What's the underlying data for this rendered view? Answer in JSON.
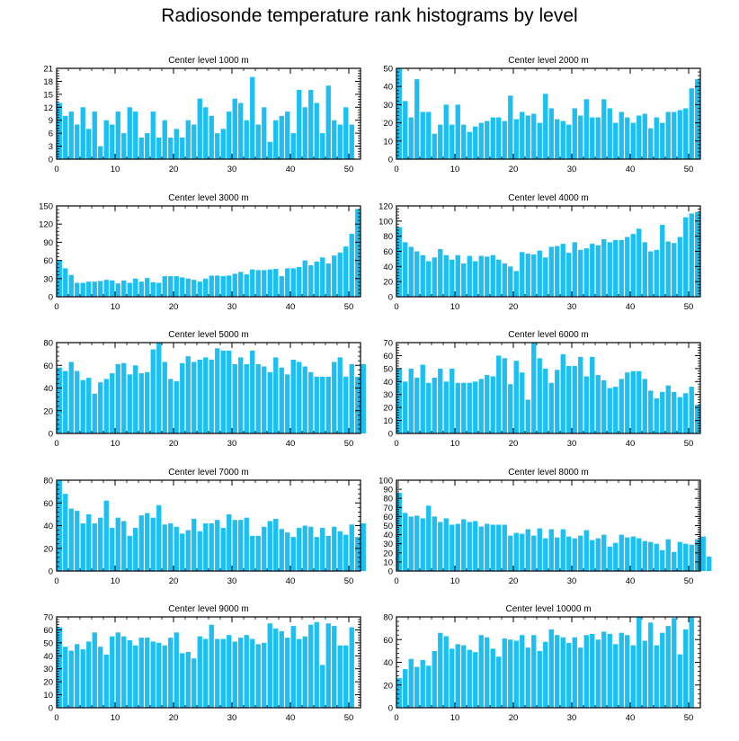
{
  "title": "Radiosonde temperature rank histograms by level",
  "chart_data": [
    {
      "type": "bar",
      "title": "Center level 1000 m",
      "ylim": [
        0,
        21
      ],
      "yticks": [
        0,
        3,
        6,
        9,
        12,
        15,
        18,
        21
      ],
      "xlim": [
        0,
        52
      ],
      "xticks": [
        0,
        10,
        20,
        30,
        40,
        50
      ],
      "values": [
        13,
        10,
        11,
        8,
        12,
        7,
        11,
        3,
        9,
        8,
        11,
        6,
        12,
        11,
        5,
        6,
        11,
        5,
        9,
        5,
        7,
        5,
        9,
        8,
        14,
        12,
        10,
        6,
        7,
        11,
        14,
        13,
        9,
        19,
        8,
        12,
        4,
        9,
        10,
        11,
        6,
        16,
        12,
        16,
        13,
        6,
        17,
        9,
        8,
        12,
        8
      ]
    },
    {
      "type": "bar",
      "title": "Center level 2000 m",
      "ylim": [
        0,
        50
      ],
      "yticks": [
        0,
        10,
        20,
        30,
        40,
        50
      ],
      "xlim": [
        0,
        52
      ],
      "xticks": [
        0,
        10,
        20,
        30,
        40,
        50
      ],
      "values": [
        50,
        32,
        23,
        44,
        26,
        26,
        14,
        19,
        30,
        19,
        30,
        19,
        15,
        18,
        20,
        21,
        23,
        23,
        21,
        35,
        22,
        26,
        24,
        25,
        20,
        36,
        28,
        22,
        21,
        19,
        28,
        24,
        33,
        23,
        23,
        33,
        28,
        20,
        26,
        23,
        20,
        24,
        25,
        17,
        23,
        20,
        26,
        26,
        27,
        28,
        39,
        44
      ]
    },
    {
      "type": "bar",
      "title": "Center level 3000 m",
      "ylim": [
        0,
        150
      ],
      "yticks": [
        0,
        30,
        60,
        90,
        120,
        150
      ],
      "xlim": [
        0,
        52
      ],
      "xticks": [
        0,
        10,
        20,
        30,
        40,
        50
      ],
      "values": [
        60,
        47,
        36,
        23,
        23,
        25,
        25,
        26,
        28,
        27,
        22,
        27,
        23,
        30,
        25,
        31,
        24,
        23,
        34,
        34,
        34,
        32,
        30,
        28,
        25,
        30,
        35,
        35,
        34,
        35,
        38,
        41,
        37,
        45,
        44,
        44,
        45,
        46,
        34,
        47,
        47,
        49,
        60,
        52,
        58,
        65,
        55,
        68,
        73,
        83,
        104,
        145
      ]
    },
    {
      "type": "bar",
      "title": "Center level 4000 m",
      "ylim": [
        0,
        120
      ],
      "yticks": [
        0,
        20,
        40,
        60,
        80,
        100,
        120
      ],
      "xlim": [
        0,
        52
      ],
      "xticks": [
        0,
        10,
        20,
        30,
        40,
        50
      ],
      "values": [
        92,
        72,
        66,
        60,
        55,
        47,
        52,
        63,
        55,
        49,
        55,
        44,
        54,
        47,
        54,
        53,
        55,
        49,
        44,
        40,
        34,
        59,
        57,
        56,
        61,
        52,
        66,
        67,
        70,
        58,
        72,
        62,
        64,
        70,
        68,
        76,
        72,
        75,
        75,
        79,
        83,
        90,
        72,
        60,
        62,
        95,
        73,
        71,
        79,
        105,
        110,
        112
      ]
    },
    {
      "type": "bar",
      "title": "Center level 5000 m",
      "ylim": [
        0,
        80
      ],
      "yticks": [
        0,
        20,
        40,
        60,
        80
      ],
      "xlim": [
        0,
        52
      ],
      "xticks": [
        0,
        10,
        20,
        30,
        40,
        50
      ],
      "values": [
        58,
        55,
        63,
        55,
        47,
        49,
        35,
        45,
        48,
        53,
        61,
        62,
        52,
        60,
        53,
        54,
        74,
        80,
        63,
        48,
        46,
        62,
        68,
        63,
        65,
        67,
        65,
        75,
        73,
        73,
        61,
        67,
        61,
        73,
        61,
        59,
        54,
        67,
        58,
        52,
        65,
        63,
        59,
        54,
        50,
        50,
        50,
        63,
        67,
        50,
        61,
        50,
        61
      ]
    },
    {
      "type": "bar",
      "title": "Center level 6000 m",
      "ylim": [
        0,
        70
      ],
      "yticks": [
        0,
        10,
        20,
        30,
        40,
        50,
        60,
        70
      ],
      "xlim": [
        0,
        52
      ],
      "xticks": [
        0,
        10,
        20,
        30,
        40,
        50
      ],
      "values": [
        50,
        40,
        50,
        43,
        53,
        39,
        43,
        50,
        40,
        50,
        39,
        39,
        39,
        40,
        42,
        45,
        44,
        60,
        58,
        38,
        56,
        47,
        26,
        70,
        58,
        50,
        39,
        49,
        61,
        52,
        52,
        59,
        44,
        59,
        45,
        41,
        35,
        36,
        42,
        47,
        48,
        48,
        42,
        33,
        27,
        32,
        37,
        32,
        28,
        31,
        36,
        22
      ]
    },
    {
      "type": "bar",
      "title": "Center level 7000 m",
      "ylim": [
        0,
        80
      ],
      "yticks": [
        0,
        20,
        40,
        60,
        80
      ],
      "xlim": [
        0,
        52
      ],
      "xticks": [
        0,
        10,
        20,
        30,
        40,
        50
      ],
      "values": [
        80,
        68,
        55,
        53,
        42,
        50,
        42,
        47,
        62,
        38,
        47,
        44,
        31,
        38,
        49,
        51,
        47,
        58,
        41,
        42,
        39,
        33,
        36,
        46,
        35,
        42,
        42,
        45,
        38,
        50,
        45,
        45,
        47,
        31,
        31,
        39,
        44,
        46,
        37,
        34,
        30,
        38,
        40,
        39,
        30,
        38,
        31,
        39,
        35,
        32,
        41,
        30,
        42
      ]
    },
    {
      "type": "bar",
      "title": "Center level 8000 m",
      "ylim": [
        0,
        100
      ],
      "yticks": [
        0,
        10,
        20,
        30,
        40,
        50,
        60,
        70,
        80,
        90,
        100
      ],
      "xlim": [
        0,
        52
      ],
      "xticks": [
        0,
        10,
        20,
        30,
        40,
        50
      ],
      "values": [
        86,
        64,
        60,
        61,
        58,
        72,
        60,
        54,
        58,
        51,
        52,
        57,
        54,
        55,
        49,
        52,
        51,
        51,
        51,
        39,
        42,
        41,
        46,
        39,
        47,
        36,
        46,
        37,
        46,
        38,
        36,
        39,
        45,
        34,
        36,
        40,
        27,
        31,
        40,
        37,
        38,
        36,
        33,
        32,
        30,
        23,
        35,
        21,
        32,
        30,
        29,
        35,
        38,
        16
      ]
    },
    {
      "type": "bar",
      "title": "Center level 9000 m",
      "ylim": [
        0,
        70
      ],
      "yticks": [
        0,
        10,
        20,
        30,
        40,
        50,
        60,
        70
      ],
      "xlim": [
        0,
        52
      ],
      "xticks": [
        0,
        10,
        20,
        30,
        40,
        50
      ],
      "values": [
        62,
        47,
        44,
        49,
        45,
        51,
        58,
        47,
        41,
        55,
        58,
        55,
        52,
        48,
        54,
        54,
        51,
        50,
        48,
        54,
        58,
        42,
        43,
        38,
        55,
        53,
        64,
        53,
        53,
        56,
        51,
        54,
        56,
        53,
        49,
        50,
        65,
        61,
        59,
        54,
        63,
        53,
        55,
        64,
        66,
        33,
        65,
        63,
        48,
        48,
        62
      ]
    },
    {
      "type": "bar",
      "title": "Center level 10000 m",
      "ylim": [
        0,
        80
      ],
      "yticks": [
        0,
        20,
        40,
        60,
        80
      ],
      "xlim": [
        0,
        52
      ],
      "xticks": [
        0,
        10,
        20,
        30,
        40,
        50
      ],
      "values": [
        26,
        34,
        43,
        36,
        42,
        37,
        50,
        66,
        63,
        52,
        56,
        55,
        51,
        49,
        64,
        62,
        52,
        45,
        61,
        60,
        59,
        64,
        53,
        64,
        50,
        58,
        69,
        64,
        62,
        57,
        62,
        53,
        64,
        65,
        60,
        67,
        65,
        56,
        66,
        64,
        55,
        80,
        59,
        75,
        55,
        66,
        72,
        79,
        47,
        69,
        81
      ]
    }
  ]
}
